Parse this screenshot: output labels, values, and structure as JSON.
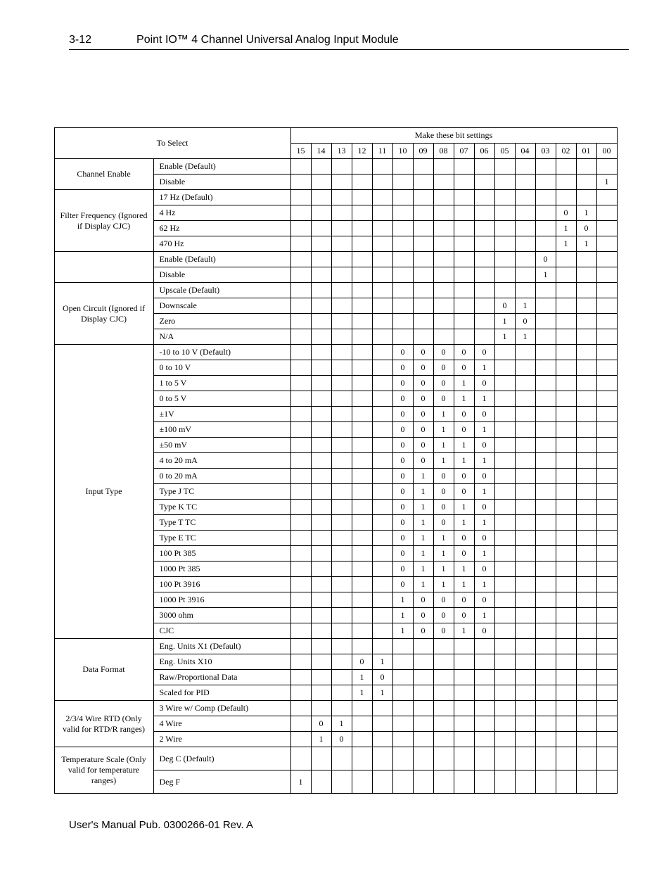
{
  "header": {
    "page_number": "3-12",
    "title": "Point IO™ 4 Channel Universal Analog Input Module"
  },
  "footer": "User's Manual Pub. 0300266-01 Rev. A",
  "table": {
    "to_select_label": "To Select",
    "bits_header": "Make these bit settings",
    "bit_columns": [
      "15",
      "14",
      "13",
      "12",
      "11",
      "10",
      "09",
      "08",
      "07",
      "06",
      "05",
      "04",
      "03",
      "02",
      "01",
      "00"
    ],
    "groups": [
      {
        "label": "Channel Enable",
        "rows": [
          {
            "option": "Enable (Default)",
            "bits": {}
          },
          {
            "option": "Disable",
            "bits": {
              "00": "1"
            }
          }
        ]
      },
      {
        "label": "Filter Frequency (Ignored if Display CJC)",
        "rows": [
          {
            "option": "17 Hz (Default)",
            "bits": {}
          },
          {
            "option": "4 Hz",
            "bits": {
              "02": "0",
              "01": "1"
            }
          },
          {
            "option": "62 Hz",
            "bits": {
              "02": "1",
              "01": "0"
            }
          },
          {
            "option": "470 Hz",
            "bits": {
              "02": "1",
              "01": "1"
            }
          }
        ]
      },
      {
        "label": "",
        "rows": [
          {
            "option": "Enable (Default)",
            "bits": {
              "03": "0"
            }
          },
          {
            "option": "Disable",
            "bits": {
              "03": "1"
            }
          }
        ]
      },
      {
        "label": "Open Circuit (Ignored if Display CJC)",
        "rows": [
          {
            "option": "Upscale (Default)",
            "bits": {}
          },
          {
            "option": "Downscale",
            "bits": {
              "05": "0",
              "04": "1"
            }
          },
          {
            "option": "Zero",
            "bits": {
              "05": "1",
              "04": "0"
            }
          },
          {
            "option": "N/A",
            "bits": {
              "05": "1",
              "04": "1"
            }
          }
        ]
      },
      {
        "label": "Input Type",
        "rows": [
          {
            "option": "-10 to 10 V (Default)",
            "bits": {
              "10": "0",
              "09": "0",
              "08": "0",
              "07": "0",
              "06": "0"
            }
          },
          {
            "option": "0 to 10 V",
            "bits": {
              "10": "0",
              "09": "0",
              "08": "0",
              "07": "0",
              "06": "1"
            }
          },
          {
            "option": "1 to 5 V",
            "bits": {
              "10": "0",
              "09": "0",
              "08": "0",
              "07": "1",
              "06": "0"
            }
          },
          {
            "option": "0 to 5 V",
            "bits": {
              "10": "0",
              "09": "0",
              "08": "0",
              "07": "1",
              "06": "1"
            }
          },
          {
            "option": "±1V",
            "bits": {
              "10": "0",
              "09": "0",
              "08": "1",
              "07": "0",
              "06": "0"
            }
          },
          {
            "option": "±100 mV",
            "bits": {
              "10": "0",
              "09": "0",
              "08": "1",
              "07": "0",
              "06": "1"
            }
          },
          {
            "option": "±50 mV",
            "bits": {
              "10": "0",
              "09": "0",
              "08": "1",
              "07": "1",
              "06": "0"
            }
          },
          {
            "option": "4 to 20 mA",
            "bits": {
              "10": "0",
              "09": "0",
              "08": "1",
              "07": "1",
              "06": "1"
            }
          },
          {
            "option": "0 to 20 mA",
            "bits": {
              "10": "0",
              "09": "1",
              "08": "0",
              "07": "0",
              "06": "0"
            }
          },
          {
            "option": "Type J TC",
            "bits": {
              "10": "0",
              "09": "1",
              "08": "0",
              "07": "0",
              "06": "1"
            }
          },
          {
            "option": "Type K TC",
            "bits": {
              "10": "0",
              "09": "1",
              "08": "0",
              "07": "1",
              "06": "0"
            }
          },
          {
            "option": "Type T TC",
            "bits": {
              "10": "0",
              "09": "1",
              "08": "0",
              "07": "1",
              "06": "1"
            }
          },
          {
            "option": "Type E TC",
            "bits": {
              "10": "0",
              "09": "1",
              "08": "1",
              "07": "0",
              "06": "0"
            }
          },
          {
            "option": "100 Pt 385",
            "bits": {
              "10": "0",
              "09": "1",
              "08": "1",
              "07": "0",
              "06": "1"
            }
          },
          {
            "option": "1000 Pt 385",
            "bits": {
              "10": "0",
              "09": "1",
              "08": "1",
              "07": "1",
              "06": "0"
            }
          },
          {
            "option": "100 Pt 3916",
            "bits": {
              "10": "0",
              "09": "1",
              "08": "1",
              "07": "1",
              "06": "1"
            }
          },
          {
            "option": "1000 Pt 3916",
            "bits": {
              "10": "1",
              "09": "0",
              "08": "0",
              "07": "0",
              "06": "0"
            }
          },
          {
            "option": "3000 ohm",
            "bits": {
              "10": "1",
              "09": "0",
              "08": "0",
              "07": "0",
              "06": "1"
            }
          },
          {
            "option": "CJC",
            "bits": {
              "10": "1",
              "09": "0",
              "08": "0",
              "07": "1",
              "06": "0"
            }
          }
        ]
      },
      {
        "label": "Data Format",
        "rows": [
          {
            "option": "Eng. Units X1 (Default)",
            "bits": {}
          },
          {
            "option": "Eng. Units X10",
            "bits": {
              "12": "0",
              "11": "1"
            }
          },
          {
            "option": "Raw/Proportional Data",
            "bits": {
              "12": "1",
              "11": "0"
            }
          },
          {
            "option": "Scaled for PID",
            "bits": {
              "12": "1",
              "11": "1"
            }
          }
        ]
      },
      {
        "label": "2/3/4 Wire RTD (Only valid for RTD/R ranges)",
        "rows": [
          {
            "option": "3 Wire w/ Comp (Default)",
            "bits": {}
          },
          {
            "option": "4 Wire",
            "bits": {
              "14": "0",
              "13": "1"
            }
          },
          {
            "option": "2 Wire",
            "bits": {
              "14": "1",
              "13": "0"
            }
          }
        ]
      },
      {
        "label": "Temperature Scale (Only valid for temperature ranges)",
        "tall": true,
        "rows": [
          {
            "option": "Deg C (Default)",
            "bits": {}
          },
          {
            "option": "Deg F",
            "bits": {
              "15": "1"
            }
          }
        ]
      }
    ]
  }
}
